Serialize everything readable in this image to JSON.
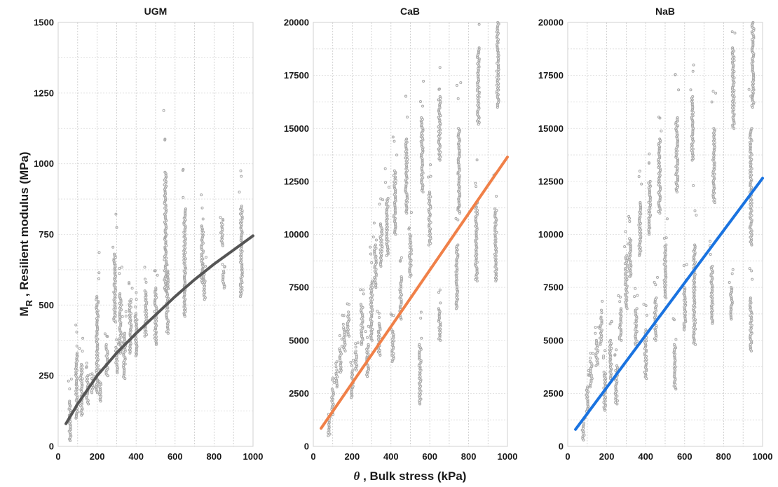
{
  "figure": {
    "ylabel_main": "M",
    "ylabel_sub": "R",
    "ylabel_rest": " , Resilient modulus (MPa)",
    "xlabel_symbol": "θ",
    "xlabel_rest": " , Bulk stress  (kPa)"
  },
  "chart_data": [
    {
      "type": "scatter",
      "title": "UGM",
      "xlim": [
        0,
        1000
      ],
      "ylim": [
        0,
        1500
      ],
      "xticks": [
        "0",
        "200",
        "400",
        "600",
        "800",
        "1000"
      ],
      "yticks": [
        "0",
        "250",
        "500",
        "750",
        "1000",
        "1250",
        "1500"
      ],
      "grid": true,
      "point_color": "#a9a9a9",
      "fit_color": "#555555",
      "fit_kind": "power",
      "fit": {
        "x": [
          40,
          100,
          200,
          300,
          400,
          500,
          600,
          700,
          800,
          900,
          1000
        ],
        "y": [
          80,
          150,
          250,
          330,
          400,
          465,
          530,
          590,
          645,
          695,
          745
        ]
      },
      "clusters": [
        {
          "x": 60,
          "y": [
            20,
            160
          ]
        },
        {
          "x": 95,
          "y": [
            100,
            330
          ]
        },
        {
          "x": 120,
          "y": [
            110,
            290
          ]
        },
        {
          "x": 150,
          "y": [
            150,
            250
          ]
        },
        {
          "x": 175,
          "y": [
            190,
            240
          ]
        },
        {
          "x": 200,
          "y": [
            190,
            530
          ]
        },
        {
          "x": 215,
          "y": [
            160,
            230
          ]
        },
        {
          "x": 250,
          "y": [
            250,
            360
          ]
        },
        {
          "x": 290,
          "y": [
            440,
            680
          ]
        },
        {
          "x": 300,
          "y": [
            260,
            350
          ]
        },
        {
          "x": 320,
          "y": [
            330,
            540
          ]
        },
        {
          "x": 340,
          "y": [
            240,
            400
          ]
        },
        {
          "x": 370,
          "y": [
            330,
            520
          ]
        },
        {
          "x": 400,
          "y": [
            320,
            470
          ]
        },
        {
          "x": 450,
          "y": [
            390,
            550
          ]
        },
        {
          "x": 500,
          "y": [
            360,
            560
          ]
        },
        {
          "x": 550,
          "y": [
            550,
            970
          ]
        },
        {
          "x": 560,
          "y": [
            400,
            620
          ]
        },
        {
          "x": 650,
          "y": [
            460,
            840
          ]
        },
        {
          "x": 740,
          "y": [
            580,
            780
          ]
        },
        {
          "x": 750,
          "y": [
            520,
            620
          ]
        },
        {
          "x": 840,
          "y": [
            710,
            790
          ]
        },
        {
          "x": 850,
          "y": [
            560,
            620
          ]
        },
        {
          "x": 940,
          "y": [
            530,
            850
          ]
        }
      ]
    },
    {
      "type": "scatter",
      "title": "CaB",
      "xlim": [
        0,
        1000
      ],
      "ylim": [
        0,
        20000
      ],
      "xticks": [
        "0",
        "200",
        "400",
        "600",
        "800",
        "1000"
      ],
      "yticks": [
        "0",
        "2500",
        "5000",
        "7500",
        "10000",
        "12500",
        "15000",
        "17500",
        "20000"
      ],
      "grid": true,
      "point_color": "#a9a9a9",
      "fit_color": "#f08048",
      "fit_kind": "linear",
      "fit": {
        "x": [
          40,
          1000
        ],
        "y": [
          850,
          13650
        ]
      },
      "clusters": [
        {
          "x": 80,
          "y": [
            500,
            1200
          ]
        },
        {
          "x": 100,
          "y": [
            1500,
            2700
          ]
        },
        {
          "x": 120,
          "y": [
            2800,
            3600
          ]
        },
        {
          "x": 140,
          "y": [
            3500,
            4600
          ]
        },
        {
          "x": 160,
          "y": [
            4500,
            5600
          ]
        },
        {
          "x": 180,
          "y": [
            5200,
            6200
          ]
        },
        {
          "x": 200,
          "y": [
            2300,
            3600
          ]
        },
        {
          "x": 220,
          "y": [
            3600,
            4500
          ]
        },
        {
          "x": 250,
          "y": [
            4800,
            6700
          ]
        },
        {
          "x": 280,
          "y": [
            3300,
            4800
          ]
        },
        {
          "x": 300,
          "y": [
            5000,
            7800
          ]
        },
        {
          "x": 320,
          "y": [
            7500,
            9500
          ]
        },
        {
          "x": 340,
          "y": [
            4300,
            5800
          ]
        },
        {
          "x": 350,
          "y": [
            8500,
            10500
          ]
        },
        {
          "x": 380,
          "y": [
            9000,
            11700
          ]
        },
        {
          "x": 410,
          "y": [
            4000,
            5500
          ]
        },
        {
          "x": 420,
          "y": [
            10000,
            13000
          ]
        },
        {
          "x": 450,
          "y": [
            6000,
            8000
          ]
        },
        {
          "x": 480,
          "y": [
            11000,
            14500
          ]
        },
        {
          "x": 500,
          "y": [
            8000,
            10000
          ]
        },
        {
          "x": 550,
          "y": [
            2000,
            4800
          ]
        },
        {
          "x": 560,
          "y": [
            12000,
            15500
          ]
        },
        {
          "x": 600,
          "y": [
            9500,
            12000
          ]
        },
        {
          "x": 650,
          "y": [
            5000,
            6500
          ]
        },
        {
          "x": 650,
          "y": [
            13500,
            16500
          ]
        },
        {
          "x": 740,
          "y": [
            6500,
            9500
          ]
        },
        {
          "x": 750,
          "y": [
            11000,
            15000
          ]
        },
        {
          "x": 840,
          "y": [
            7800,
            11500
          ]
        },
        {
          "x": 850,
          "y": [
            15200,
            18800
          ]
        },
        {
          "x": 940,
          "y": [
            7800,
            11200
          ]
        },
        {
          "x": 950,
          "y": [
            16000,
            20000
          ]
        }
      ]
    },
    {
      "type": "scatter",
      "title": "NaB",
      "xlim": [
        0,
        1000
      ],
      "ylim": [
        0,
        20000
      ],
      "xticks": [
        "0",
        "200",
        "400",
        "600",
        "800",
        "1000"
      ],
      "yticks": [
        "0",
        "2500",
        "5000",
        "7500",
        "10000",
        "12500",
        "15000",
        "17500",
        "20000"
      ],
      "grid": true,
      "point_color": "#a9a9a9",
      "fit_color": "#1a73e0",
      "fit_kind": "linear",
      "fit": {
        "x": [
          40,
          1000
        ],
        "y": [
          800,
          12650
        ]
      },
      "clusters": [
        {
          "x": 80,
          "y": [
            300,
            1000
          ]
        },
        {
          "x": 100,
          "y": [
            1500,
            2800
          ]
        },
        {
          "x": 120,
          "y": [
            2800,
            4000
          ]
        },
        {
          "x": 150,
          "y": [
            3800,
            5000
          ]
        },
        {
          "x": 170,
          "y": [
            4800,
            6100
          ]
        },
        {
          "x": 190,
          "y": [
            1700,
            3500
          ]
        },
        {
          "x": 220,
          "y": [
            3200,
            5000
          ]
        },
        {
          "x": 250,
          "y": [
            2000,
            3800
          ]
        },
        {
          "x": 270,
          "y": [
            5000,
            6500
          ]
        },
        {
          "x": 300,
          "y": [
            6500,
            9000
          ]
        },
        {
          "x": 320,
          "y": [
            8000,
            9800
          ]
        },
        {
          "x": 350,
          "y": [
            4800,
            6500
          ]
        },
        {
          "x": 370,
          "y": [
            9000,
            11500
          ]
        },
        {
          "x": 400,
          "y": [
            3200,
            5500
          ]
        },
        {
          "x": 420,
          "y": [
            10000,
            12500
          ]
        },
        {
          "x": 450,
          "y": [
            5000,
            7000
          ]
        },
        {
          "x": 470,
          "y": [
            11000,
            14500
          ]
        },
        {
          "x": 500,
          "y": [
            7000,
            9500
          ]
        },
        {
          "x": 550,
          "y": [
            2700,
            4800
          ]
        },
        {
          "x": 560,
          "y": [
            12000,
            15500
          ]
        },
        {
          "x": 600,
          "y": [
            5500,
            7500
          ]
        },
        {
          "x": 640,
          "y": [
            13500,
            16500
          ]
        },
        {
          "x": 650,
          "y": [
            4800,
            9500
          ]
        },
        {
          "x": 740,
          "y": [
            5800,
            8500
          ]
        },
        {
          "x": 750,
          "y": [
            11500,
            15000
          ]
        },
        {
          "x": 840,
          "y": [
            6000,
            7500
          ]
        },
        {
          "x": 850,
          "y": [
            15000,
            18800
          ]
        },
        {
          "x": 940,
          "y": [
            4500,
            7000
          ]
        },
        {
          "x": 940,
          "y": [
            9500,
            15000
          ]
        },
        {
          "x": 950,
          "y": [
            16000,
            20000
          ]
        }
      ]
    }
  ]
}
